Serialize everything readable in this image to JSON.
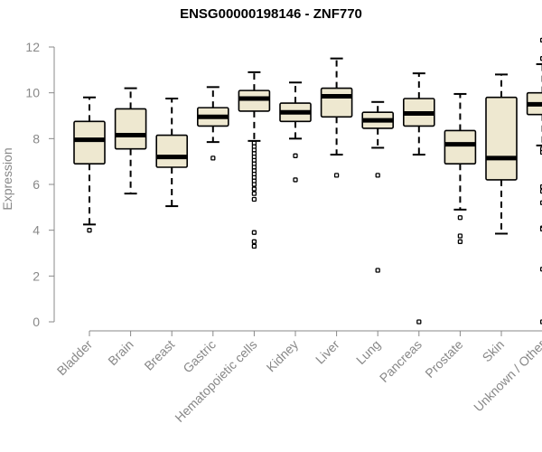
{
  "chart_data": {
    "type": "boxplot",
    "title": "ENSG00000198146 - ZNF770",
    "ylabel": "Expression",
    "xlabel": "",
    "ylim": [
      0,
      12
    ],
    "yticks": [
      0,
      2,
      4,
      6,
      8,
      10,
      12
    ],
    "grid": false,
    "colors": {
      "box_fill": "#EEE8D0",
      "stroke": "#000000",
      "axis": "#888888"
    },
    "categories": [
      "Bladder",
      "Brain",
      "Breast",
      "Gastric",
      "Hematopoietic cells",
      "Kidney",
      "Liver",
      "Lung",
      "Pancreas",
      "Prostate",
      "Skin",
      "Unknown / Other"
    ],
    "boxes": [
      {
        "q1": 6.9,
        "median": 7.95,
        "q3": 8.75,
        "whisker_low": 4.25,
        "whisker_high": 9.8,
        "outliers": [
          4.0
        ]
      },
      {
        "q1": 7.55,
        "median": 8.15,
        "q3": 9.3,
        "whisker_low": 5.6,
        "whisker_high": 10.2,
        "outliers": []
      },
      {
        "q1": 6.75,
        "median": 7.2,
        "q3": 8.15,
        "whisker_low": 5.05,
        "whisker_high": 9.75,
        "outliers": []
      },
      {
        "q1": 8.55,
        "median": 8.95,
        "q3": 9.35,
        "whisker_low": 7.85,
        "whisker_high": 10.25,
        "outliers": [
          7.15
        ]
      },
      {
        "q1": 9.2,
        "median": 9.75,
        "q3": 10.1,
        "whisker_low": 7.9,
        "whisker_high": 10.9,
        "outliers": [
          7.8,
          7.65,
          7.5,
          7.35,
          7.2,
          7.05,
          6.9,
          6.75,
          6.6,
          6.45,
          6.3,
          6.15,
          6.0,
          5.8,
          5.6,
          5.35,
          3.9,
          3.5,
          3.3
        ]
      },
      {
        "q1": 8.75,
        "median": 9.15,
        "q3": 9.55,
        "whisker_low": 8.0,
        "whisker_high": 10.45,
        "outliers": [
          7.25,
          6.2
        ]
      },
      {
        "q1": 8.95,
        "median": 9.85,
        "q3": 10.2,
        "whisker_low": 7.3,
        "whisker_high": 11.5,
        "outliers": [
          6.4
        ]
      },
      {
        "q1": 8.45,
        "median": 8.8,
        "q3": 9.15,
        "whisker_low": 7.6,
        "whisker_high": 9.6,
        "outliers": [
          6.4,
          2.25
        ]
      },
      {
        "q1": 8.55,
        "median": 9.1,
        "q3": 9.75,
        "whisker_low": 7.3,
        "whisker_high": 10.85,
        "outliers": [
          0.0
        ]
      },
      {
        "q1": 6.9,
        "median": 7.75,
        "q3": 8.35,
        "whisker_low": 4.9,
        "whisker_high": 9.95,
        "outliers": [
          4.55,
          3.75,
          3.5
        ]
      },
      {
        "q1": 6.2,
        "median": 7.15,
        "q3": 9.8,
        "whisker_low": 3.85,
        "whisker_high": 10.8,
        "outliers": []
      },
      {
        "q1": 9.05,
        "median": 9.5,
        "q3": 10.0,
        "whisker_low": 7.7,
        "whisker_high": 11.25,
        "outliers": [
          12.3,
          11.5,
          7.55,
          7.4,
          5.9,
          5.7,
          5.2,
          4.1,
          4.05,
          2.3,
          0.0
        ]
      }
    ]
  }
}
